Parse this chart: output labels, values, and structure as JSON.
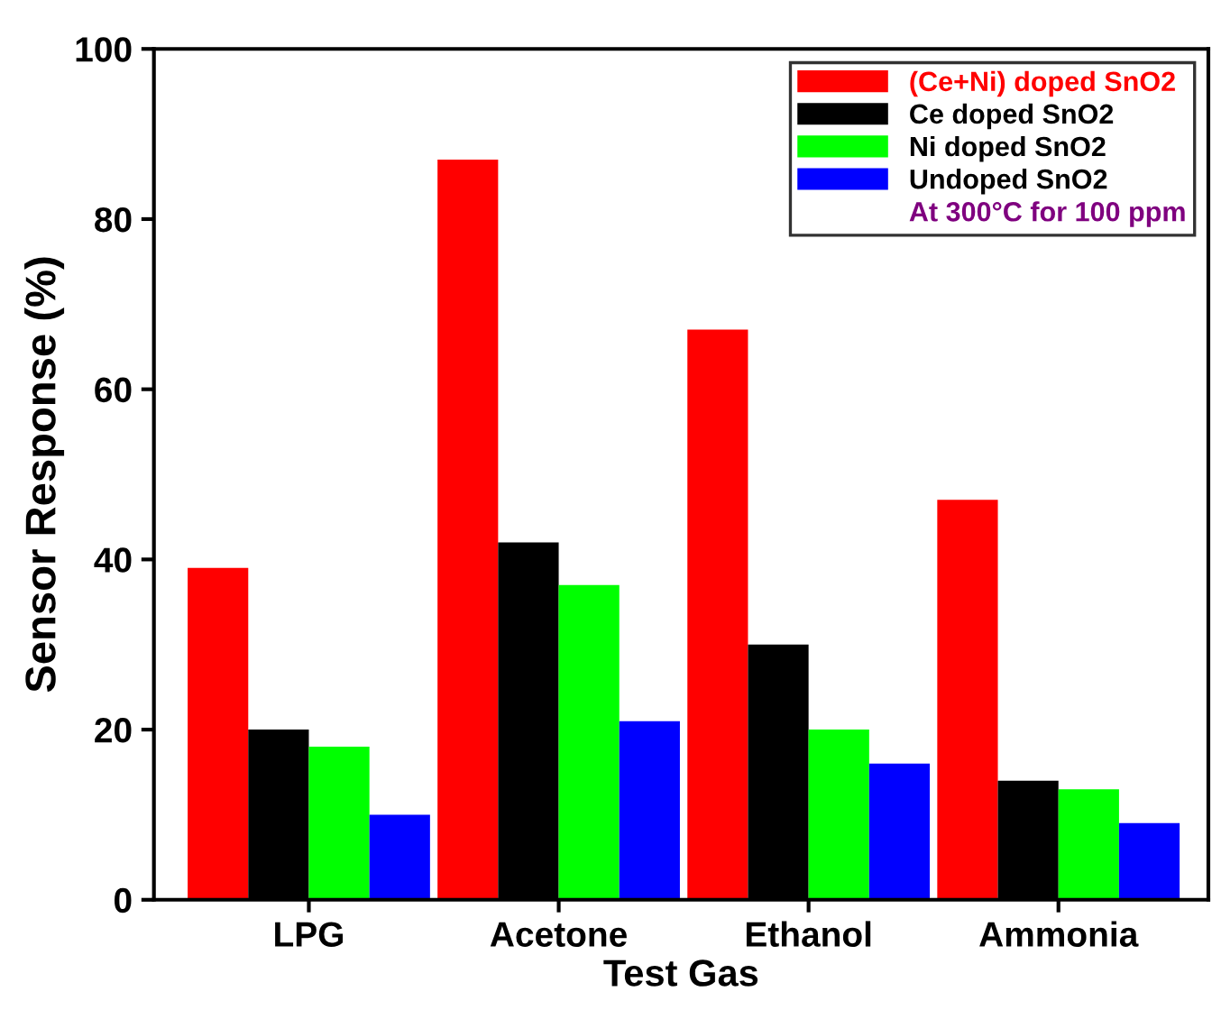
{
  "chart_data": {
    "type": "bar",
    "xlabel": "Test Gas",
    "ylabel": "Sensor Response (%)",
    "categories": [
      "LPG",
      "Acetone",
      "Ethanol",
      "Ammonia"
    ],
    "series": [
      {
        "name": "(Ce+Ni) doped SnO2",
        "color": "#ff0000",
        "values": [
          39,
          87,
          67,
          47
        ]
      },
      {
        "name": "Ce doped SnO2",
        "color": "#000000",
        "values": [
          20,
          42,
          30,
          14
        ]
      },
      {
        "name": "Ni doped SnO2",
        "color": "#00ff00",
        "values": [
          18,
          37,
          20,
          13
        ]
      },
      {
        "name": "Undoped SnO2",
        "color": "#0000ff",
        "values": [
          10,
          21,
          16,
          9
        ]
      }
    ],
    "ylim": [
      0,
      100
    ],
    "yticks": [
      0,
      20,
      40,
      60,
      80,
      100
    ],
    "grid": false,
    "legend": "top right",
    "annotations": [
      "At 300°C for 100 ppm"
    ]
  }
}
